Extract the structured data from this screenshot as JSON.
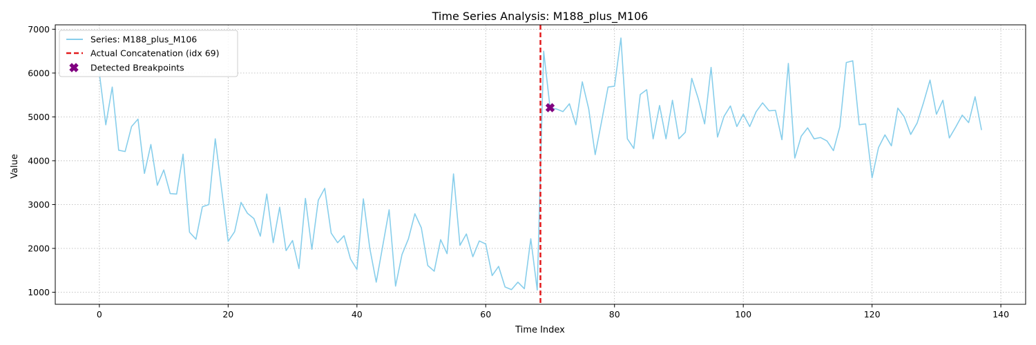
{
  "chart_data": {
    "type": "line",
    "title": "Time Series Analysis: M188_plus_M106",
    "xlabel": "Time Index",
    "ylabel": "Value",
    "xlim": [
      -6.85,
      143.85
    ],
    "ylim": [
      725,
      7100
    ],
    "xticks": [
      0,
      20,
      40,
      60,
      80,
      100,
      120,
      140
    ],
    "yticks": [
      1000,
      2000,
      3000,
      4000,
      5000,
      6000,
      7000
    ],
    "grid": true,
    "legend_position": "upper-left",
    "series": [
      {
        "name": "Series: M188_plus_M106",
        "color": "#87ceeb",
        "x": [
          0,
          1,
          2,
          3,
          4,
          5,
          6,
          7,
          8,
          9,
          10,
          11,
          12,
          13,
          14,
          15,
          16,
          17,
          18,
          19,
          20,
          21,
          22,
          23,
          24,
          25,
          26,
          27,
          28,
          29,
          30,
          31,
          32,
          33,
          34,
          35,
          36,
          37,
          38,
          39,
          40,
          41,
          42,
          43,
          44,
          45,
          46,
          47,
          48,
          49,
          50,
          51,
          52,
          53,
          54,
          55,
          56,
          57,
          58,
          59,
          60,
          61,
          62,
          63,
          64,
          65,
          66,
          67,
          68,
          69,
          70,
          71,
          72,
          73,
          74,
          75,
          76,
          77,
          78,
          79,
          80,
          81,
          82,
          83,
          84,
          85,
          86,
          87,
          88,
          89,
          90,
          91,
          92,
          93,
          94,
          95,
          96,
          97,
          98,
          99,
          100,
          101,
          102,
          103,
          104,
          105,
          106,
          107,
          108,
          109,
          110,
          111,
          112,
          113,
          114,
          115,
          116,
          117,
          118,
          119,
          120,
          121,
          122,
          123,
          124,
          125,
          126,
          127,
          128,
          129,
          130,
          131,
          132,
          133,
          134,
          135,
          136,
          137
        ],
        "values": [
          6000,
          4820,
          5680,
          4240,
          4210,
          4780,
          4950,
          3710,
          4370,
          3440,
          3790,
          3250,
          3240,
          4150,
          2370,
          2210,
          2950,
          3000,
          4500,
          3330,
          2160,
          2380,
          3050,
          2800,
          2680,
          2280,
          3240,
          2130,
          2940,
          1950,
          2180,
          1540,
          3140,
          1980,
          3100,
          3370,
          2350,
          2130,
          2290,
          1760,
          1520,
          3130,
          2000,
          1230,
          2050,
          2880,
          1140,
          1860,
          2220,
          2790,
          2470,
          1610,
          1480,
          2200,
          1880,
          3700,
          2070,
          2330,
          1810,
          2170,
          2100,
          1380,
          1590,
          1120,
          1060,
          1230,
          1080,
          2220,
          1050,
          6500,
          5200,
          5180,
          5120,
          5300,
          4820,
          5800,
          5180,
          4140,
          4900,
          5680,
          5700,
          6800,
          4500,
          4280,
          5510,
          5620,
          4500,
          5260,
          4500,
          5380,
          4500,
          4650,
          5880,
          5420,
          4840,
          6130,
          4540,
          5010,
          5250,
          4780,
          5060,
          4780,
          5120,
          5320,
          5140,
          5150,
          4480,
          6220,
          4060,
          4560,
          4750,
          4500,
          4530,
          4450,
          4230,
          4780,
          6240,
          6280,
          4820,
          4840,
          3610,
          4300,
          4590,
          4340,
          5200,
          5000,
          4600,
          4860,
          5330,
          5840,
          5060,
          5380,
          4520,
          4770,
          5040,
          4870,
          5460,
          4700
        ]
      }
    ],
    "concatenation": {
      "name": "Actual Concatenation (idx 69)",
      "x": 68.5,
      "color": "#e31a1c"
    },
    "breakpoints": {
      "name": "Detected Breakpoints",
      "color": "#800080",
      "points": [
        {
          "x": 70,
          "y": 5210
        }
      ]
    }
  }
}
